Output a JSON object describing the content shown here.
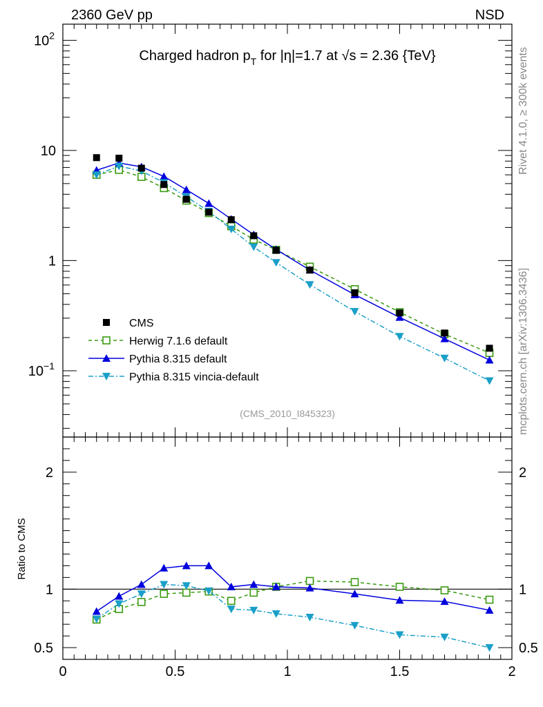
{
  "header": {
    "left": "2360 GeV pp",
    "right": "NSD"
  },
  "side_labels": {
    "top": "Rivet 4.1.0, ≥ 300k events",
    "bottom": "mcplots.cern.ch [arXiv:1306.3436]"
  },
  "chart_data": [
    {
      "type": "scatter",
      "panel": "main",
      "title": "Charged hadron p_T for |η|=1.7 at √s = 2.36 {TeV}",
      "title_parts": {
        "a": "Charged hadron p",
        "sub": "T",
        "b": " for |η|=1.7 at ",
        "sqrt": "√",
        "c": "s = 2.36 {TeV}"
      },
      "watermark": "(CMS_2010_I845323)",
      "xlim": [
        0,
        2
      ],
      "ylim": [
        0.025,
        140
      ],
      "yscale": "log",
      "y_ticks": [
        {
          "v": 100,
          "label": "10",
          "exp": "2"
        },
        {
          "v": 10,
          "label": "10",
          "exp": ""
        },
        {
          "v": 1,
          "label": "1",
          "exp": ""
        },
        {
          "v": 0.1,
          "label": "10",
          "exp": "−1"
        }
      ],
      "x": [
        0.15,
        0.25,
        0.35,
        0.45,
        0.55,
        0.65,
        0.75,
        0.85,
        0.95,
        1.1,
        1.3,
        1.5,
        1.7,
        1.9
      ],
      "series": [
        {
          "name": "CMS",
          "style": "data",
          "color": "#000000",
          "values": [
            8.6,
            8.5,
            6.9,
            4.9,
            3.6,
            2.75,
            2.35,
            1.68,
            1.24,
            0.82,
            0.51,
            0.335,
            0.22,
            0.16
          ]
        },
        {
          "name": "Herwig 7.1.6 default",
          "style": "open-square",
          "color": "#3a9a10",
          "dash": "5,4",
          "values": [
            6.0,
            6.65,
            5.75,
            4.55,
            3.5,
            2.7,
            2.05,
            1.55,
            1.25,
            0.88,
            0.55,
            0.34,
            0.215,
            0.145
          ]
        },
        {
          "name": "Pythia 8.315 default",
          "style": "tri-up",
          "color": "#0000dd",
          "dash": "",
          "values": [
            6.6,
            7.7,
            7.1,
            5.8,
            4.4,
            3.3,
            2.38,
            1.72,
            1.26,
            0.82,
            0.49,
            0.305,
            0.195,
            0.125
          ]
        },
        {
          "name": "Pythia 8.315 vincia-default",
          "style": "tri-down",
          "color": "#1a9fc8",
          "dash": "7,3,2,3",
          "values": [
            6.0,
            7.2,
            6.5,
            5.1,
            3.8,
            2.8,
            1.93,
            1.33,
            0.96,
            0.605,
            0.345,
            0.205,
            0.13,
            0.081
          ]
        }
      ]
    },
    {
      "type": "line",
      "panel": "ratio",
      "ylabel": "Ratio to CMS",
      "xlim": [
        0,
        2
      ],
      "ylim": [
        0.4,
        2.3
      ],
      "reference": 1,
      "x_ticks": [
        {
          "v": 0,
          "label": "0"
        },
        {
          "v": 0.5,
          "label": "0.5"
        },
        {
          "v": 1,
          "label": "1"
        },
        {
          "v": 1.5,
          "label": "1.5"
        },
        {
          "v": 2,
          "label": "2"
        }
      ],
      "y_ticks": [
        {
          "v": 2,
          "label": "2"
        },
        {
          "v": 1,
          "label": "1"
        },
        {
          "v": 0.5,
          "label": "0.5"
        }
      ],
      "x": [
        0.15,
        0.25,
        0.35,
        0.45,
        0.55,
        0.65,
        0.75,
        0.85,
        0.95,
        1.1,
        1.3,
        1.5,
        1.7,
        1.9
      ],
      "series": [
        {
          "name": "Herwig 7.1.6 default",
          "style": "open-square",
          "color": "#3a9a10",
          "dash": "5,4",
          "values": [
            0.74,
            0.83,
            0.89,
            0.96,
            0.97,
            0.98,
            0.9,
            0.97,
            1.02,
            1.07,
            1.06,
            1.02,
            0.99,
            0.91
          ]
        },
        {
          "name": "Pythia 8.315 default",
          "style": "tri-up",
          "color": "#0000dd",
          "dash": "",
          "values": [
            0.81,
            0.94,
            1.04,
            1.18,
            1.2,
            1.2,
            1.02,
            1.04,
            1.02,
            1.01,
            0.96,
            0.905,
            0.895,
            0.82
          ]
        },
        {
          "name": "Pythia 8.315 vincia-default",
          "style": "tri-down",
          "color": "#1a9fc8",
          "dash": "7,3,2,3",
          "values": [
            0.745,
            0.875,
            0.96,
            1.04,
            1.03,
            0.985,
            0.83,
            0.82,
            0.79,
            0.76,
            0.69,
            0.61,
            0.59,
            0.5
          ]
        }
      ]
    }
  ]
}
